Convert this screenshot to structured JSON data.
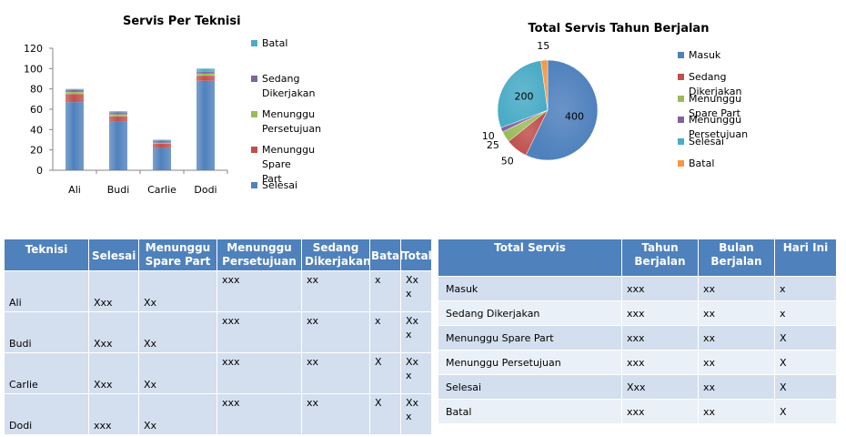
{
  "chart_data": [
    {
      "type": "bar",
      "stacked": true,
      "title": "Servis Per Teknisi",
      "categories": [
        "Ali",
        "Budi",
        "Carlie",
        "Dodi"
      ],
      "ylim": [
        0,
        120
      ],
      "yticks": [
        0,
        20,
        40,
        60,
        80,
        100,
        120
      ],
      "legend_position": "right",
      "series": [
        {
          "name": "Selesai",
          "color": "#4f81bd",
          "values": [
            67,
            48,
            22,
            88
          ]
        },
        {
          "name": "Menunggu Spare Part",
          "color": "#c0504d",
          "values": [
            8,
            5,
            4,
            5
          ]
        },
        {
          "name": "Menunggu Persetujuan",
          "color": "#9bbb59",
          "values": [
            2,
            2,
            1,
            2
          ]
        },
        {
          "name": "Sedang Dikerjakan",
          "color": "#8064a2",
          "values": [
            2,
            2,
            2,
            2
          ]
        },
        {
          "name": "Batal",
          "color": "#4bacc6",
          "values": [
            1,
            1,
            1,
            3
          ]
        }
      ],
      "legend_order": [
        "Batal",
        "Sedang Dikerjakan",
        "Menunggu Persetujuan",
        "Menunggu Spare Part",
        "Selesai"
      ],
      "legend_labels": {
        "Batal": [
          "Batal"
        ],
        "Sedang Dikerjakan": [
          "Sedang Dikerjakan"
        ],
        "Menunggu Persetujuan": [
          "Menunggu",
          "Persetujuan"
        ],
        "Menunggu Spare Part": [
          "Menunggu Spare",
          "Part"
        ],
        "Selesai": [
          "Selesai"
        ]
      }
    },
    {
      "type": "pie",
      "title": "Total Servis Tahun Berjalan",
      "legend_position": "right",
      "slices": [
        {
          "label": "Masuk",
          "value": 400,
          "color": "#4f81bd"
        },
        {
          "label": "Sedang Dikerjakan",
          "value": 50,
          "color": "#c0504d"
        },
        {
          "label": "Menunggu Spare Part",
          "value": 25,
          "color": "#9bbb59"
        },
        {
          "label": "Menunggu Persetujuan",
          "value": 10,
          "color": "#8064a2"
        },
        {
          "label": "Selesai",
          "value": 200,
          "color": "#4bacc6"
        },
        {
          "label": "Batal",
          "value": 15,
          "color": "#f79646"
        }
      ]
    }
  ],
  "tech_table": {
    "headers": [
      "Teknisi",
      "Selesai",
      "Menunggu Spare Part",
      "Menunggu Persetujuan",
      "Sedang Dikerjakan",
      "Batal",
      "Total"
    ],
    "rows": [
      {
        "teknisi": "Ali",
        "selesai": "Xxx",
        "spare": "Xx",
        "persetujuan": "xxx",
        "dikerjakan": "xx",
        "batal": "x",
        "total": "Xx x"
      },
      {
        "teknisi": "Budi",
        "selesai": "Xxx",
        "spare": "Xx",
        "persetujuan": "xxx",
        "dikerjakan": "xx",
        "batal": "x",
        "total": "Xx x"
      },
      {
        "teknisi": "Carlie",
        "selesai": "Xxx",
        "spare": "Xx",
        "persetujuan": "xxx",
        "dikerjakan": "xx",
        "batal": "X",
        "total": "Xx x"
      },
      {
        "teknisi": "Dodi",
        "selesai": "xxx",
        "spare": "Xx",
        "persetujuan": "xxx",
        "dikerjakan": "xx",
        "batal": "X",
        "total": "Xx x"
      }
    ]
  },
  "total_table": {
    "headers": [
      "Total Servis",
      "Tahun Berjalan",
      "Bulan Berjalan",
      "Hari Ini"
    ],
    "rows": [
      {
        "label": "Masuk",
        "tahun": "xxx",
        "bulan": "xx",
        "hari": "x"
      },
      {
        "label": "Sedang Dikerjakan",
        "tahun": "xxx",
        "bulan": "xx",
        "hari": "x"
      },
      {
        "label": "Menunggu Spare Part",
        "tahun": "xxx",
        "bulan": "xx",
        "hari": "X"
      },
      {
        "label": "Menunggu Persetujuan",
        "tahun": "xxx",
        "bulan": "xx",
        "hari": "X"
      },
      {
        "label": "Selesai",
        "tahun": "Xxx",
        "bulan": "xx",
        "hari": "X"
      },
      {
        "label": "Batal",
        "tahun": "xxx",
        "bulan": "xx",
        "hari": "X"
      }
    ]
  }
}
